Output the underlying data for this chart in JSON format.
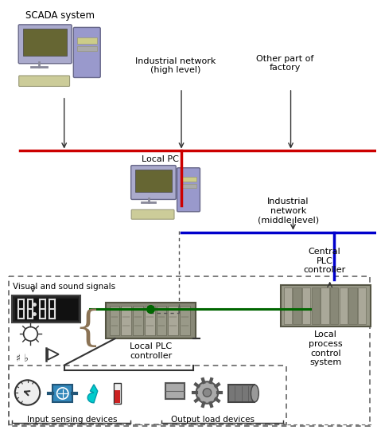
{
  "title": "Process Control System Diagram",
  "bg_color": "#ffffff",
  "fig_width": 4.74,
  "fig_height": 5.45,
  "dpi": 100,
  "labels": {
    "scada": "SCADA system",
    "local_pc": "Local PC",
    "ind_net_high": "Industrial network\n(high level)",
    "other_factory": "Other part of\nfactory",
    "ind_net_mid": "Industrial\nnetwork\n(middle level)",
    "central_plc": "Central\nPLC\ncontroller",
    "visual_sound": "Visual and sound signals",
    "local_plc": "Local PLC\ncontroller",
    "local_process": "Local\nprocess\ncontrol\nsystem",
    "input_devices": "Input sensing devices",
    "output_devices": "Output load devices"
  },
  "colors": {
    "red_line": "#cc0000",
    "blue_line": "#0000cc",
    "green_line": "#006600",
    "dashed_box": "#555555",
    "computer_body": "#9999cc",
    "computer_screen": "#666633",
    "monitor_frame": "#aaaacc",
    "keyboard": "#cccc99",
    "plc_body": "#888877",
    "arrow_color": "#333333",
    "text_color": "#000000",
    "cyan": "#00cccc"
  }
}
